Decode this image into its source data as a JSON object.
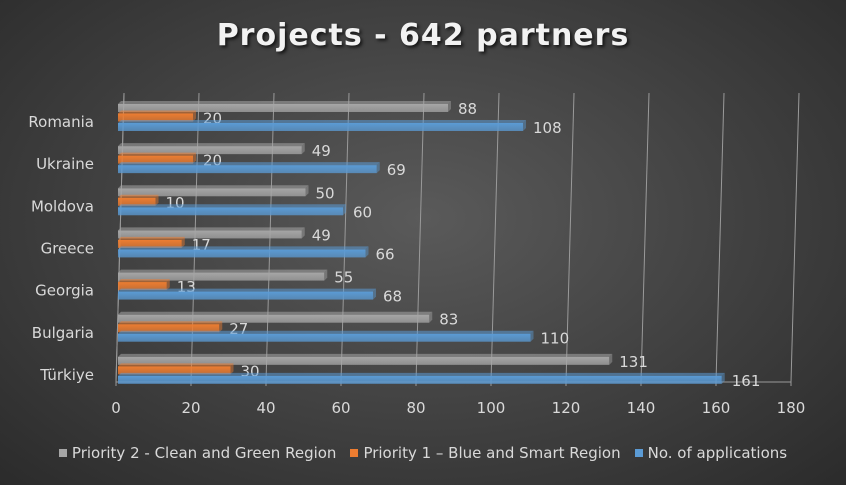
{
  "chart_data": {
    "type": "bar",
    "orientation": "horizontal",
    "title": "Projects - 642 partners",
    "categories": [
      "Romania",
      "Ukraine",
      "Moldova",
      "Greece",
      "Georgia",
      "Bulgaria",
      "Türkiye"
    ],
    "series": [
      {
        "name": "Priority 2 - Clean and Green Region",
        "color": "#a6a6a6",
        "values": [
          88,
          49,
          50,
          49,
          55,
          83,
          131
        ]
      },
      {
        "name": "Priority 1 – Blue and Smart Region",
        "color": "#ed7d31",
        "values": [
          20,
          20,
          10,
          17,
          13,
          27,
          30
        ]
      },
      {
        "name": "No. of applications",
        "color": "#5b9bd5",
        "values": [
          108,
          69,
          60,
          66,
          68,
          110,
          161
        ]
      }
    ],
    "xlim": [
      0,
      180
    ],
    "xticks": [
      0,
      20,
      40,
      60,
      80,
      100,
      120,
      140,
      160,
      180
    ],
    "grid": true,
    "legend_position": "bottom"
  }
}
